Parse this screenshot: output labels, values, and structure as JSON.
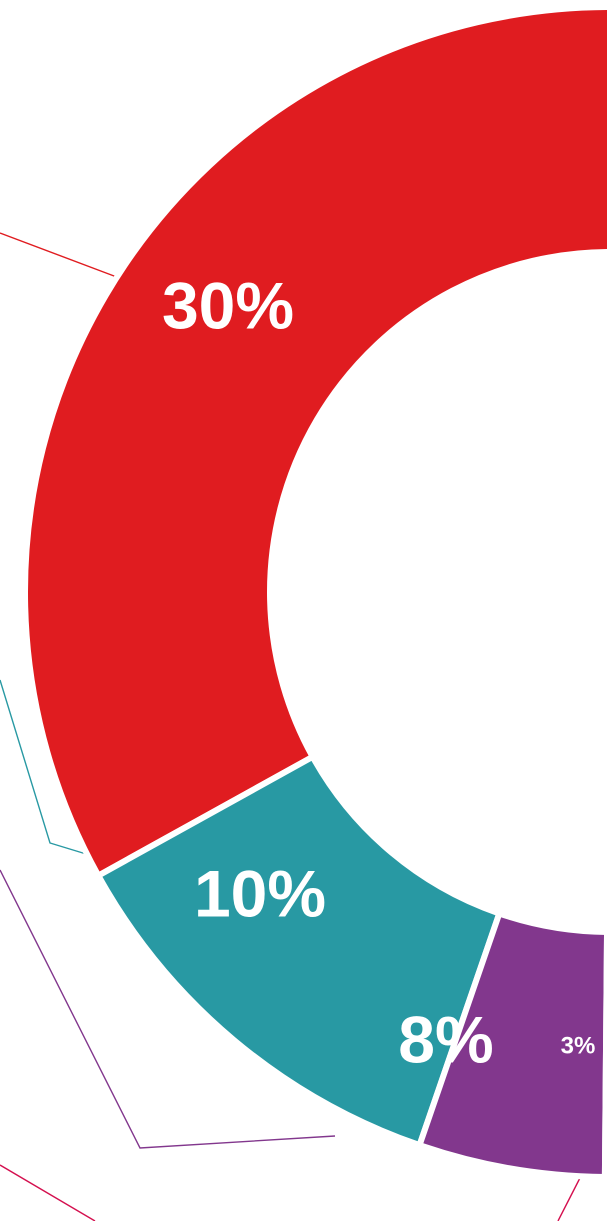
{
  "chart_data": {
    "type": "pie",
    "style": "donut",
    "cropped": true,
    "categories": [
      "",
      "",
      "",
      ""
    ],
    "values": [
      30,
      10,
      8,
      3
    ],
    "labels": [
      "30%",
      "10%",
      "8%",
      "3%"
    ],
    "colors": [
      "#e01c20",
      "#2899a3",
      "#82378d",
      "#d4104f"
    ],
    "leader_line_colors": [
      "#e01c20",
      "#2899a3",
      "#82378d",
      "#d4104f"
    ],
    "title": "",
    "legend": "none"
  }
}
